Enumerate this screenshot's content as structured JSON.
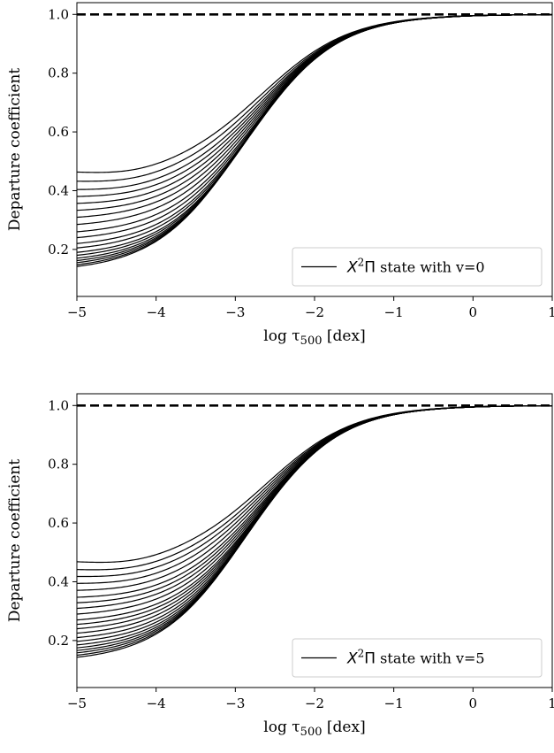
{
  "chart_data": [
    {
      "type": "line",
      "panel": "top",
      "xlabel": "log τ500 [dex]",
      "ylabel": "Departure coefficient",
      "xlim": [
        -5,
        1
      ],
      "ylim": [
        0.04,
        1.04
      ],
      "xticks": [
        -5,
        -4,
        -3,
        -2,
        -1,
        0,
        1
      ],
      "xtick_labels": [
        "−5",
        "−4",
        "−3",
        "−2",
        "−1",
        "0",
        "1"
      ],
      "yticks": [
        0.2,
        0.4,
        0.6,
        0.8,
        1.0
      ],
      "ytick_labels": [
        "0.2",
        "0.4",
        "0.6",
        "0.8",
        "1.0"
      ],
      "grid": false,
      "legend": {
        "placement": "lower-right",
        "label_prefix": "X",
        "label_sup": "2",
        "label_pi": "Π",
        "label_rest": " state with v=0"
      },
      "reference_line": {
        "y": 1.0,
        "style": "dashed"
      },
      "low_tau_values": [
        0.473,
        0.44,
        0.41,
        0.385,
        0.36,
        0.335,
        0.31,
        0.285,
        0.26,
        0.24,
        0.22,
        0.205,
        0.19,
        0.18,
        0.17,
        0.162,
        0.155,
        0.148,
        0.142
      ],
      "curve_knee_x": -2.65,
      "curve_knee_spread": 0.25,
      "curve_width": 0.55
    },
    {
      "type": "line",
      "panel": "bottom",
      "xlabel": "log τ500 [dex]",
      "ylabel": "Departure coefficient",
      "xlim": [
        -5,
        1
      ],
      "ylim": [
        0.04,
        1.04
      ],
      "xticks": [
        -5,
        -4,
        -3,
        -2,
        -1,
        0,
        1
      ],
      "xtick_labels": [
        "−5",
        "−4",
        "−3",
        "−2",
        "−1",
        "0",
        "1"
      ],
      "yticks": [
        0.2,
        0.4,
        0.6,
        0.8,
        1.0
      ],
      "ytick_labels": [
        "0.2",
        "0.4",
        "0.6",
        "0.8",
        "1.0"
      ],
      "grid": false,
      "legend": {
        "placement": "lower-right",
        "label_prefix": "X",
        "label_sup": "2",
        "label_pi": "Π",
        "label_rest": " state with v=5"
      },
      "reference_line": {
        "y": 1.0,
        "style": "dashed"
      },
      "low_tau_values": [
        0.478,
        0.45,
        0.425,
        0.4,
        0.375,
        0.35,
        0.33,
        0.31,
        0.29,
        0.27,
        0.255,
        0.24,
        0.225,
        0.21,
        0.197,
        0.185,
        0.175,
        0.166,
        0.158,
        0.15,
        0.143
      ],
      "curve_knee_x": -2.6,
      "curve_knee_spread": 0.25,
      "curve_width": 0.55
    }
  ],
  "colors": {
    "line": "#000000",
    "background": "#ffffff"
  }
}
